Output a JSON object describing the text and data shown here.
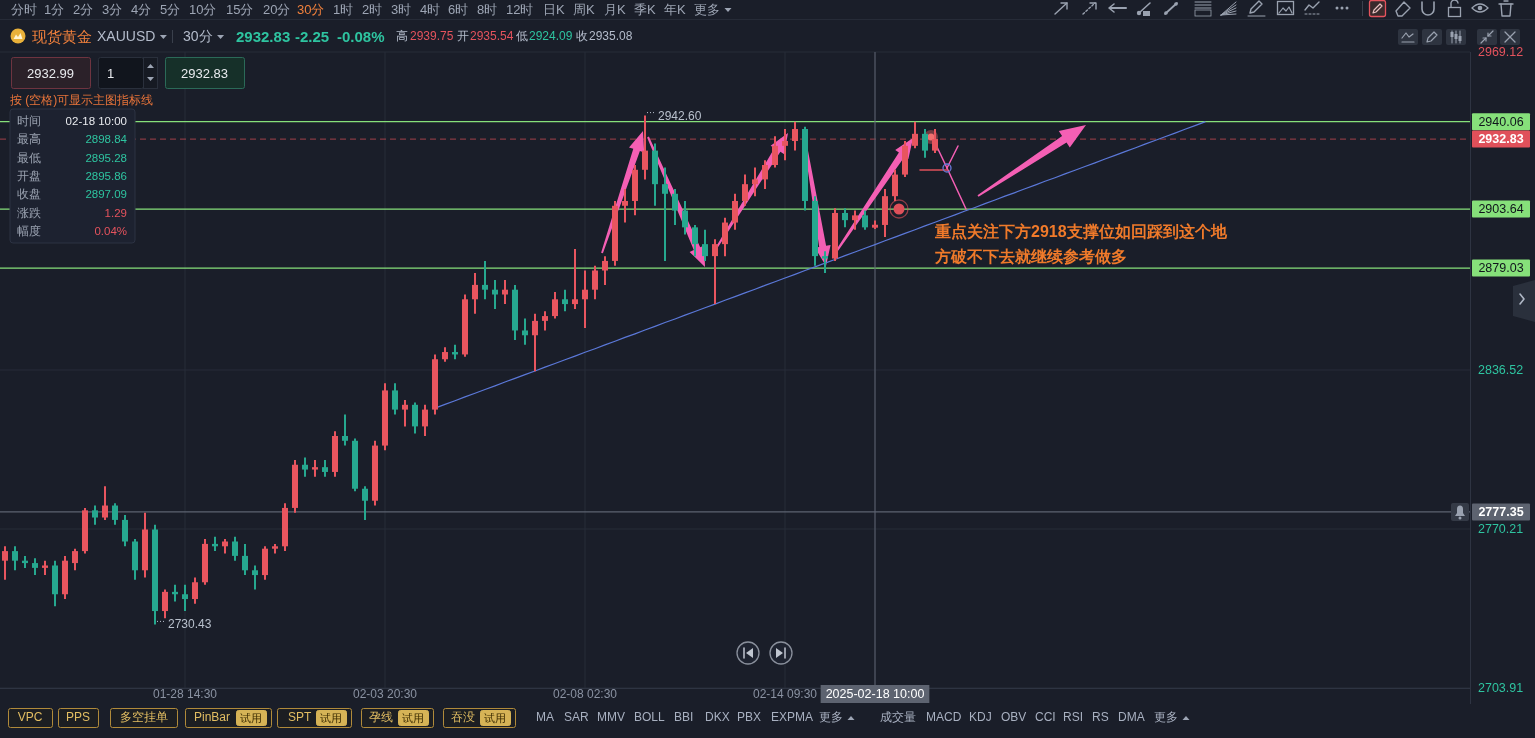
{
  "chart_data": {
    "type": "candlestick",
    "title": "现货黄金",
    "subtitle": "XAUUSD",
    "categories": [
      null,
      null,
      null,
      null,
      null,
      null,
      null,
      null,
      null,
      null,
      null,
      null,
      null,
      null,
      null,
      null,
      null,
      null,
      "01-28 14:30",
      null,
      null,
      null,
      null,
      null,
      null,
      null,
      null,
      null,
      null,
      null,
      null,
      null,
      null,
      null,
      null,
      null,
      null,
      null,
      "02-03 20:30",
      null,
      null,
      null,
      null,
      null,
      null,
      null,
      null,
      null,
      null,
      null,
      null,
      null,
      null,
      null,
      null,
      null,
      null,
      null,
      "02-08 02:30",
      null,
      null,
      null,
      null,
      null,
      null,
      null,
      null,
      null,
      null,
      null,
      null,
      null,
      null,
      null,
      null,
      null,
      null,
      null,
      "02-14 09:30",
      null,
      null,
      null,
      null,
      null,
      null,
      null,
      null,
      "2025-02-18 10:00",
      null,
      null,
      null,
      null,
      null,
      null,
      null,
      null,
      null,
      null,
      null,
      null,
      null,
      null,
      null,
      null,
      null,
      null,
      null,
      null,
      null,
      null,
      null,
      null,
      null,
      null,
      null,
      null,
      null,
      null,
      null,
      null,
      null,
      null,
      null,
      null,
      null,
      null,
      null,
      null,
      null,
      null,
      null,
      null,
      null,
      null,
      null,
      null,
      null,
      null,
      null,
      null,
      null,
      null,
      null,
      null,
      null,
      null,
      null
    ],
    "ohlc": [
      [
        2757,
        2763,
        2749,
        2761
      ],
      [
        2761,
        2763,
        2753,
        2757
      ],
      [
        2757,
        2759,
        2754,
        2756
      ],
      [
        2756,
        2758,
        2751,
        2754
      ],
      [
        2754,
        2757,
        2751,
        2755
      ],
      [
        2755,
        2757,
        2738,
        2743
      ],
      [
        2743,
        2759,
        2741,
        2757
      ],
      [
        2756,
        2762,
        2753,
        2761
      ],
      [
        2761,
        2779,
        2760,
        2778
      ],
      [
        2778,
        2780,
        2772,
        2775
      ],
      [
        2775,
        2788,
        2774,
        2780
      ],
      [
        2780,
        2781,
        2772,
        2774
      ],
      [
        2774,
        2776,
        2763,
        2765
      ],
      [
        2765,
        2766,
        2749,
        2753
      ],
      [
        2753,
        2777,
        2750,
        2770
      ],
      [
        2770,
        2772,
        2730.43,
        2736
      ],
      [
        2736,
        2745,
        2733,
        2744
      ],
      [
        2744,
        2747,
        2740,
        2743
      ],
      [
        2743,
        2747,
        2736,
        2741
      ],
      [
        2741,
        2750,
        2739,
        2748
      ],
      [
        2748,
        2766,
        2747,
        2764
      ],
      [
        2764,
        2767,
        2761,
        2763
      ],
      [
        2763,
        2766,
        2760,
        2765
      ],
      [
        2765,
        2767,
        2757,
        2759
      ],
      [
        2759,
        2764,
        2751,
        2753
      ],
      [
        2753,
        2755,
        2745,
        2751
      ],
      [
        2751,
        2763,
        2749,
        2762
      ],
      [
        2762,
        2764,
        2760,
        2763
      ],
      [
        2763,
        2781,
        2761,
        2779
      ],
      [
        2779,
        2799,
        2777,
        2797
      ],
      [
        2797,
        2800,
        2792,
        2795
      ],
      [
        2795,
        2799,
        2792,
        2796
      ],
      [
        2796,
        2799,
        2792,
        2794
      ],
      [
        2794,
        2811,
        2792,
        2809
      ],
      [
        2809,
        2818,
        2805,
        2807
      ],
      [
        2807,
        2808,
        2786,
        2787
      ],
      [
        2787,
        2788,
        2774,
        2782
      ],
      [
        2782,
        2807,
        2780,
        2805
      ],
      [
        2805,
        2831,
        2803,
        2828
      ],
      [
        2828,
        2831,
        2818,
        2820
      ],
      [
        2820,
        2824,
        2813,
        2822
      ],
      [
        2822,
        2823,
        2810,
        2813
      ],
      [
        2813,
        2822,
        2809,
        2820
      ],
      [
        2820,
        2843,
        2818,
        2841
      ],
      [
        2841,
        2846,
        2840,
        2844
      ],
      [
        2844,
        2847,
        2841,
        2843
      ],
      [
        2843,
        2868,
        2842,
        2866
      ],
      [
        2866,
        2877,
        2860,
        2872
      ],
      [
        2872,
        2882,
        2866,
        2870
      ],
      [
        2870,
        2874,
        2862,
        2868
      ],
      [
        2868,
        2874,
        2864,
        2870
      ],
      [
        2870,
        2872,
        2849,
        2853
      ],
      [
        2853,
        2858,
        2847,
        2851
      ],
      [
        2851,
        2860,
        2836,
        2857
      ],
      [
        2857,
        2861,
        2853,
        2859
      ],
      [
        2859,
        2869,
        2858,
        2866
      ],
      [
        2866,
        2870,
        2861,
        2864
      ],
      [
        2864,
        2887,
        2862,
        2866
      ],
      [
        2866,
        2878,
        2854,
        2870
      ],
      [
        2870,
        2880,
        2866,
        2878
      ],
      [
        2878,
        2884,
        2872,
        2882
      ],
      [
        2882,
        2907,
        2880,
        2905
      ],
      [
        2905,
        2912,
        2898,
        2907
      ],
      [
        2907,
        2922,
        2901,
        2920
      ],
      [
        2920,
        2942.6,
        2916,
        2928
      ],
      [
        2928,
        2931,
        2905,
        2914
      ],
      [
        2914,
        2921,
        2882,
        2910
      ],
      [
        2910,
        2912,
        2897,
        2903
      ],
      [
        2903,
        2907,
        2893,
        2896
      ],
      [
        2896,
        2897,
        2884,
        2889
      ],
      [
        2889,
        2895,
        2882,
        2884
      ],
      [
        2884,
        2891,
        2864,
        2889
      ],
      [
        2889,
        2900,
        2884,
        2898
      ],
      [
        2898,
        2910,
        2895,
        2907
      ],
      [
        2907,
        2918,
        2905,
        2914
      ],
      [
        2914,
        2921,
        2909,
        2916
      ],
      [
        2916,
        2924,
        2912,
        2922
      ],
      [
        2922,
        2934,
        2921,
        2930
      ],
      [
        2930,
        2937,
        2924,
        2932
      ],
      [
        2932,
        2940,
        2928,
        2937
      ],
      [
        2937,
        2938,
        2903,
        2907
      ],
      [
        2907,
        2909,
        2880,
        2884
      ],
      [
        2884,
        2886,
        2877,
        2883
      ],
      [
        2883,
        2904,
        2882,
        2902
      ],
      [
        2902,
        2904,
        2896,
        2899
      ],
      [
        2899,
        2903,
        2895,
        2901
      ],
      [
        2901,
        2903,
        2895,
        2896
      ],
      [
        2895.86,
        2898.84,
        2895.28,
        2897.09
      ],
      [
        2897,
        2912,
        2892,
        2909
      ],
      [
        2909,
        2920,
        2907,
        2918
      ],
      [
        2918,
        2932,
        2917,
        2930
      ],
      [
        2930,
        2940,
        2929,
        2935
      ],
      [
        2935,
        2937,
        2925,
        2928
      ],
      [
        2928,
        2937,
        2927,
        2932.83
      ],
      null,
      null,
      null,
      null,
      null,
      null,
      null,
      null,
      null,
      null,
      null,
      null,
      null,
      null,
      null,
      null,
      null,
      null,
      null,
      null,
      null,
      null,
      null,
      null,
      null,
      null,
      null,
      null,
      null,
      null,
      null,
      null,
      null,
      null,
      null,
      null,
      null,
      null,
      null,
      null,
      null,
      null,
      null,
      null,
      null,
      null,
      null,
      null,
      null,
      null,
      null,
      null,
      null
    ],
    "colors": [
      "#e8555f",
      "#26a88f",
      "#26a88f",
      "#26a88f",
      "#e8555f",
      "#26a88f",
      "#e8555f",
      "#e8555f",
      "#e8555f",
      "#26a88f",
      "#e8555f",
      "#26a88f",
      "#26a88f",
      "#26a88f",
      "#e8555f",
      "#26a88f",
      "#e8555f",
      "#26a88f",
      "#26a88f",
      "#e8555f",
      "#e8555f",
      "#26a88f",
      "#e8555f",
      "#26a88f",
      "#26a88f",
      "#26a88f",
      "#e8555f",
      "#e8555f",
      "#e8555f",
      "#e8555f",
      "#26a88f",
      "#e8555f",
      "#26a88f",
      "#e8555f",
      "#26a88f",
      "#26a88f",
      "#26a88f",
      "#e8555f",
      "#e8555f",
      "#26a88f",
      "#e8555f",
      "#26a88f",
      "#e8555f",
      "#e8555f",
      "#e8555f",
      "#26a88f",
      "#e8555f",
      "#e8555f",
      "#26a88f",
      "#26a88f",
      "#e8555f",
      "#26a88f",
      "#26a88f",
      "#e8555f",
      "#e8555f",
      "#e8555f",
      "#26a88f",
      "#e8555f",
      "#e8555f",
      "#e8555f",
      "#e8555f",
      "#e8555f",
      "#e8555f",
      "#e8555f",
      "#e8555f",
      "#26a88f",
      "#26a88f",
      "#26a88f",
      "#26a88f",
      "#26a88f",
      "#26a88f",
      "#e8555f",
      "#e8555f",
      "#e8555f",
      "#e8555f",
      "#e8555f",
      "#e8555f",
      "#e8555f",
      "#e8555f",
      "#e8555f",
      "#26a88f",
      "#26a88f",
      "#26a88f",
      "#e8555f",
      "#26a88f",
      "#e8555f",
      "#26a88f",
      "#e8555f",
      "#e8555f",
      "#e8555f",
      "#e8555f",
      "#e8555f",
      "#26a88f",
      "#e8555f",
      null,
      null,
      null,
      null,
      null,
      null,
      null,
      null,
      null,
      null,
      null,
      null,
      null,
      null,
      null,
      null,
      null,
      null,
      null,
      null,
      null,
      null,
      null,
      null,
      null,
      null,
      null,
      null,
      null,
      null,
      null,
      null,
      null,
      null,
      null,
      null,
      null,
      null,
      null,
      null,
      null,
      null,
      null,
      null,
      null,
      null,
      null,
      null,
      null,
      null,
      null,
      null,
      null
    ],
    "series": [
      {
        "type": "line",
        "color": "#5b78d8",
        "values": [
          null,
          null,
          null,
          null,
          null,
          null,
          null,
          null,
          null,
          null,
          null,
          null,
          null,
          null,
          null,
          null,
          null,
          null,
          null,
          null,
          null,
          null,
          null,
          null,
          null,
          null,
          null,
          null,
          null,
          null,
          null,
          null,
          null,
          null,
          null,
          null,
          null,
          null,
          null,
          null,
          null,
          null,
          null,
          2820.6,
          2822.2,
          2823.7,
          2825.3,
          2826.8,
          2828.4,
          2829.9,
          2831.5,
          2833.0,
          2834.6,
          2836.1,
          2837.7,
          2839.2,
          2840.8,
          2842.3,
          2843.9,
          2845.4,
          2847.0,
          2848.5,
          2850.1,
          2851.6,
          2853.2,
          2854.7,
          2856.3,
          2857.8,
          2859.4,
          2860.9,
          2862.5,
          2864.0,
          2865.6,
          2867.1,
          2868.7,
          2870.2,
          2871.8,
          2873.3,
          2874.9,
          2876.4,
          2878.0,
          2879.5,
          2881.1,
          2882.6,
          2884.2,
          2885.7,
          2887.3,
          2888.8,
          2890.4,
          2891.9,
          2893.5,
          2895.0,
          2896.6,
          2898.1,
          2899.7,
          2901.2,
          2902.8,
          2904.3,
          2905.9,
          2907.4,
          2909.0,
          2910.5,
          2912.1,
          2913.6,
          2915.2,
          2916.7,
          2918.3,
          2919.8,
          2921.4,
          2922.9,
          2924.5,
          2926.0,
          2927.6,
          2929.1,
          2930.7,
          2932.2,
          2933.8,
          2935.3,
          2936.9,
          2938.4,
          2940.0,
          null,
          null,
          null,
          null,
          null,
          null,
          null,
          null,
          null,
          null,
          null,
          null,
          null,
          null,
          null,
          null,
          null,
          null,
          null,
          null,
          null,
          null,
          null,
          null,
          null,
          null
        ]
      }
    ],
    "ylim": [
      2703.91,
      2969.12
    ],
    "yticks": [
      2703.91,
      2770.21,
      2836.52,
      2969.12
    ],
    "grid": true,
    "ref_lines": [
      {
        "axis": "y",
        "value": 2940.06,
        "label": "2940.06",
        "color": "#86e07a"
      },
      {
        "axis": "y",
        "value": 2932.83,
        "label": "2932.83",
        "color": "#e0505a",
        "line_style": "dashed"
      },
      {
        "axis": "y",
        "value": 2903.64,
        "label": "2903.64",
        "color": "#86e07a"
      },
      {
        "axis": "y",
        "value": 2879.03,
        "label": "2879.03",
        "color": "#86e07a"
      },
      {
        "axis": "y",
        "value": 2777.35,
        "label": "2777.35",
        "color": "#5d6370"
      },
      {
        "axis": "x",
        "value": "2025-02-18 10:00",
        "color": "#5d6370"
      }
    ],
    "annotations": [
      "分时",
      "1分",
      "2分",
      "3分",
      "4分",
      "5分",
      "10分",
      "15分",
      "20分",
      "30分",
      "1时",
      "2时",
      "3时",
      "4时",
      "6时",
      "8时",
      "12时",
      "日K",
      "周K",
      "月K",
      "季K",
      "年K",
      "更多",
      "30分",
      "2932.83",
      "-2.25",
      "-0.08%",
      "高",
      "2939.75",
      "开",
      "2935.54",
      "低",
      "2924.09",
      "收",
      "2935.08",
      "2932.99",
      "1",
      "2932.83",
      "按 (空格)可显示主图指标线",
      "时间",
      "02-18 10:00",
      "最高",
      "2898.84",
      "最低",
      "2895.28",
      "开盘",
      "2895.86",
      "收盘",
      "2897.09",
      "涨跌",
      "1.29",
      "幅度",
      "0.04%",
      "2942.60",
      "2730.43",
      "重点关注下方2918支撑位如回踩到这个地方破不下去就继续参考做多",
      "VPC",
      "PPS",
      "多空挂单",
      "PinBar",
      "试用",
      "SPT",
      "试用",
      "孕线",
      "试用",
      "吞没",
      "试用",
      "MA",
      "SAR",
      "MMV",
      "BOLL",
      "BBI",
      "DKX",
      "PBX",
      "EXPMA",
      "更多",
      "成交量",
      "MACD",
      "KDJ",
      "OBV",
      "CCI",
      "RSI",
      "RS",
      "DMA",
      "更多"
    ]
  }
}
